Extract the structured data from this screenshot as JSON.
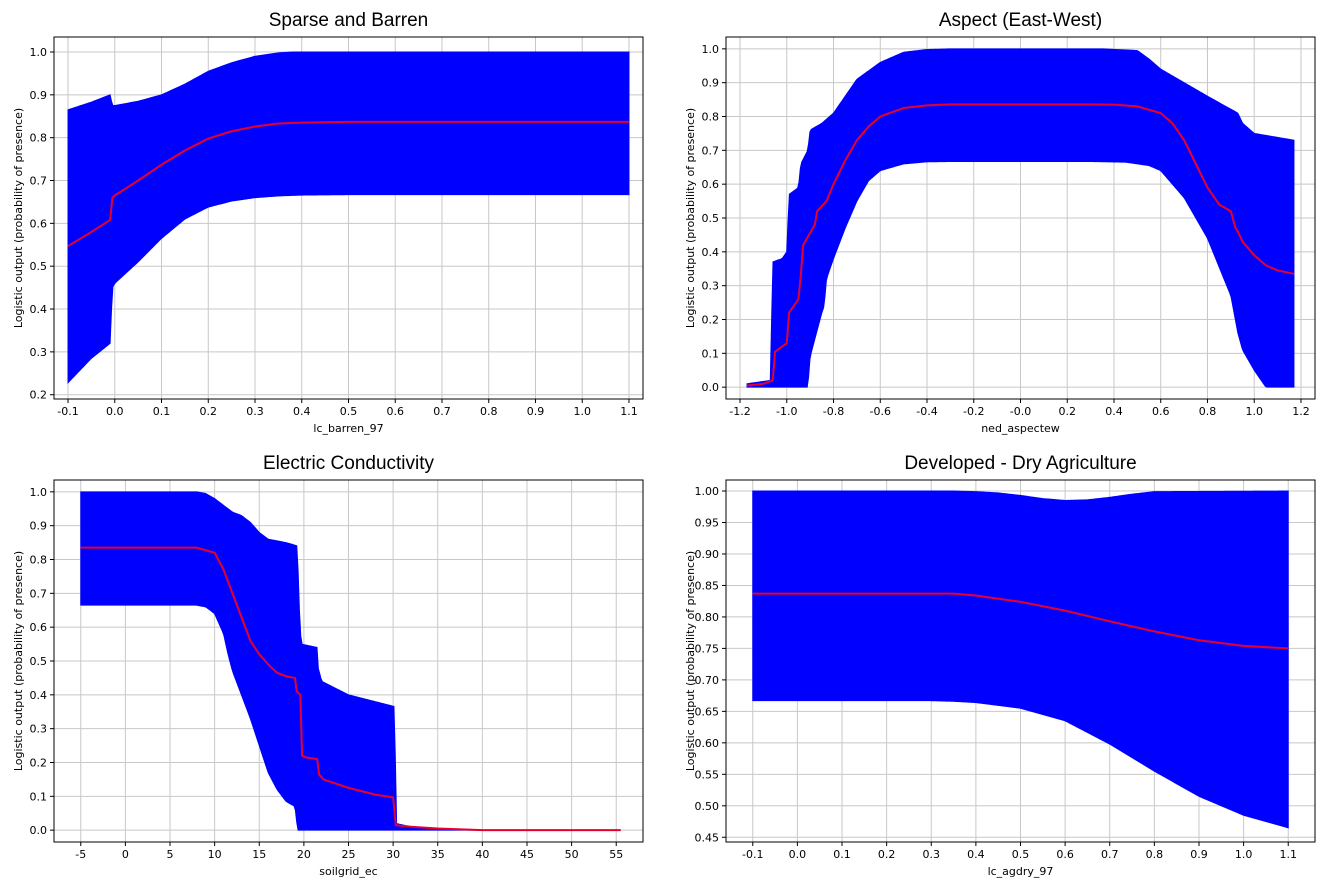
{
  "chart_data": [
    {
      "type": "area",
      "title": "Sparse and Barren",
      "xlabel": "lc_barren_97",
      "ylabel": "Logistic output (probability of presence)",
      "xlim": [
        -0.13,
        1.13
      ],
      "ylim": [
        0.19,
        1.035
      ],
      "xticks": [
        -0.1,
        0.0,
        0.1,
        0.2,
        0.3,
        0.4,
        0.5,
        0.6,
        0.7,
        0.8,
        0.9,
        1.0,
        1.1
      ],
      "yticks": [
        0.2,
        0.3,
        0.4,
        0.5,
        0.6,
        0.7,
        0.8,
        0.9,
        1.0
      ],
      "x_decimals": 1,
      "y_decimals": 1,
      "colors": {
        "band": "#0000ff",
        "line": "#e8002a"
      },
      "series": [
        {
          "role": "mean",
          "x": [
            -0.1,
            -0.05,
            -0.01,
            -0.005,
            0.0,
            0.05,
            0.1,
            0.15,
            0.2,
            0.25,
            0.3,
            0.35,
            0.4,
            0.5,
            0.6,
            0.8,
            1.0,
            1.1
          ],
          "values": [
            0.547,
            0.58,
            0.608,
            0.66,
            0.665,
            0.7,
            0.737,
            0.77,
            0.798,
            0.815,
            0.826,
            0.833,
            0.835,
            0.837,
            0.837,
            0.837,
            0.837,
            0.837
          ]
        },
        {
          "role": "upper",
          "x": [
            -0.1,
            -0.05,
            -0.01,
            -0.005,
            0.0,
            0.05,
            0.1,
            0.15,
            0.2,
            0.25,
            0.3,
            0.35,
            0.38,
            0.5,
            1.1
          ],
          "values": [
            0.865,
            0.883,
            0.9,
            0.875,
            0.875,
            0.885,
            0.9,
            0.925,
            0.955,
            0.975,
            0.99,
            0.998,
            1.0,
            1.0,
            1.0
          ]
        },
        {
          "role": "lower",
          "x": [
            -0.1,
            -0.05,
            -0.01,
            -0.005,
            0.0,
            0.05,
            0.1,
            0.15,
            0.2,
            0.25,
            0.3,
            0.35,
            0.4,
            0.5,
            1.1
          ],
          "values": [
            0.228,
            0.285,
            0.32,
            0.45,
            0.46,
            0.51,
            0.565,
            0.61,
            0.638,
            0.652,
            0.66,
            0.664,
            0.666,
            0.667,
            0.667
          ]
        }
      ]
    },
    {
      "type": "area",
      "title": "Aspect (East-West)",
      "xlabel": "ned_aspectew",
      "ylabel": "Logistic output (probability of presence)",
      "xlim": [
        -1.26,
        1.26
      ],
      "ylim": [
        -0.035,
        1.035
      ],
      "xticks": [
        -1.2,
        -1.0,
        -0.8,
        -0.6,
        -0.4,
        -0.2,
        -0.0,
        0.2,
        0.4,
        0.6,
        0.8,
        1.0,
        1.2
      ],
      "yticks": [
        0.0,
        0.1,
        0.2,
        0.3,
        0.4,
        0.5,
        0.6,
        0.7,
        0.8,
        0.9,
        1.0
      ],
      "x_decimals": 1,
      "y_decimals": 1,
      "colors": {
        "band": "#0000ff",
        "line": "#e8002a"
      },
      "series": [
        {
          "role": "mean",
          "x": [
            -1.17,
            -1.1,
            -1.06,
            -1.05,
            -1.0,
            -0.99,
            -0.95,
            -0.94,
            -0.93,
            -0.88,
            -0.87,
            -0.83,
            -0.8,
            -0.75,
            -0.7,
            -0.65,
            -0.6,
            -0.5,
            -0.4,
            -0.3,
            0.3,
            0.4,
            0.5,
            0.6,
            0.65,
            0.7,
            0.75,
            0.8,
            0.85,
            0.9,
            0.92,
            0.93,
            0.95,
            1.0,
            1.05,
            1.1,
            1.17
          ],
          "values": [
            0.005,
            0.01,
            0.02,
            0.105,
            0.13,
            0.22,
            0.26,
            0.33,
            0.42,
            0.48,
            0.52,
            0.55,
            0.6,
            0.67,
            0.73,
            0.77,
            0.8,
            0.825,
            0.833,
            0.836,
            0.836,
            0.835,
            0.83,
            0.81,
            0.78,
            0.73,
            0.66,
            0.59,
            0.54,
            0.52,
            0.47,
            0.46,
            0.43,
            0.39,
            0.36,
            0.345,
            0.335
          ]
        },
        {
          "role": "upper",
          "x": [
            -1.17,
            -1.07,
            -1.06,
            -1.02,
            -1.0,
            -0.99,
            -0.95,
            -0.94,
            -0.91,
            -0.9,
            -0.85,
            -0.8,
            -0.75,
            -0.7,
            -0.6,
            -0.5,
            -0.4,
            -0.3,
            0.35,
            0.5,
            0.55,
            0.6,
            0.7,
            0.8,
            0.93,
            0.95,
            1.0,
            1.17
          ],
          "values": [
            0.01,
            0.02,
            0.37,
            0.38,
            0.4,
            0.57,
            0.59,
            0.66,
            0.7,
            0.76,
            0.78,
            0.81,
            0.86,
            0.91,
            0.96,
            0.99,
            0.998,
            1.0,
            1.0,
            0.995,
            0.97,
            0.94,
            0.9,
            0.86,
            0.81,
            0.78,
            0.75,
            0.73
          ]
        },
        {
          "role": "lower",
          "x": [
            -1.17,
            -1.1,
            -1.05,
            -1.0,
            -0.95,
            -0.91,
            -0.9,
            -0.85,
            -0.84,
            -0.83,
            -0.8,
            -0.75,
            -0.7,
            -0.65,
            -0.6,
            -0.5,
            -0.4,
            -0.3,
            0.3,
            0.45,
            0.55,
            0.6,
            0.7,
            0.8,
            0.9,
            0.93,
            0.95,
            1.0,
            1.05,
            1.1,
            1.17
          ],
          "values": [
            0.0,
            0.0,
            0.0,
            0.0,
            0.0,
            0.0,
            0.09,
            0.22,
            0.24,
            0.32,
            0.38,
            0.47,
            0.55,
            0.61,
            0.64,
            0.66,
            0.666,
            0.667,
            0.667,
            0.665,
            0.655,
            0.64,
            0.56,
            0.44,
            0.27,
            0.16,
            0.11,
            0.05,
            0.0,
            0.0,
            0.0
          ]
        }
      ]
    },
    {
      "type": "area",
      "title": "Electric Conductivity",
      "xlabel": "soilgrid_ec",
      "ylabel": "Logistic output (probability of presence)",
      "xlim": [
        -8.0,
        58.0
      ],
      "ylim": [
        -0.035,
        1.035
      ],
      "xticks": [
        -5,
        0,
        5,
        10,
        15,
        20,
        25,
        30,
        35,
        40,
        45,
        50,
        55
      ],
      "yticks": [
        0.0,
        0.1,
        0.2,
        0.3,
        0.4,
        0.5,
        0.6,
        0.7,
        0.8,
        0.9,
        1.0
      ],
      "x_decimals": 0,
      "y_decimals": 1,
      "colors": {
        "band": "#0000ff",
        "line": "#e8002a"
      },
      "series": [
        {
          "role": "mean",
          "x": [
            -5,
            8,
            10,
            11,
            12,
            13,
            14,
            15,
            16,
            17,
            18,
            19,
            19.2,
            19.6,
            19.8,
            20.2,
            21.5,
            21.7,
            22.2,
            25,
            28,
            30,
            30.3,
            32,
            35,
            40,
            45,
            55.5
          ],
          "values": [
            0.835,
            0.835,
            0.82,
            0.77,
            0.7,
            0.63,
            0.56,
            0.52,
            0.49,
            0.465,
            0.455,
            0.45,
            0.41,
            0.4,
            0.22,
            0.215,
            0.21,
            0.165,
            0.15,
            0.125,
            0.105,
            0.097,
            0.015,
            0.01,
            0.005,
            0.0,
            0.0,
            0.0
          ]
        },
        {
          "role": "upper",
          "x": [
            -5,
            8,
            9,
            10,
            11,
            12,
            13,
            14,
            15,
            16,
            17,
            18,
            19.3,
            19.4,
            19.7,
            21.5,
            21.6,
            22,
            25,
            30.2,
            30.3,
            32,
            35,
            40,
            55.5
          ],
          "values": [
            1.0,
            1.0,
            0.995,
            0.98,
            0.96,
            0.94,
            0.93,
            0.91,
            0.88,
            0.86,
            0.855,
            0.85,
            0.84,
            0.7,
            0.55,
            0.54,
            0.48,
            0.44,
            0.4,
            0.365,
            0.02,
            0.01,
            0.005,
            0.0,
            0.0
          ]
        },
        {
          "role": "lower",
          "x": [
            -5,
            8,
            9,
            10,
            11,
            11.5,
            12,
            13,
            14,
            15,
            16,
            17,
            18,
            19,
            19.3,
            55.5
          ],
          "values": [
            0.665,
            0.665,
            0.66,
            0.64,
            0.58,
            0.52,
            0.47,
            0.4,
            0.33,
            0.25,
            0.17,
            0.12,
            0.085,
            0.07,
            0.0,
            0.0
          ]
        }
      ]
    },
    {
      "type": "area",
      "title": "Developed - Dry Agriculture",
      "xlabel": "lc_agdry_97",
      "ylabel": "Logistic output (probability of presence)",
      "xlim": [
        -0.16,
        1.16
      ],
      "ylim": [
        0.4425,
        1.0175
      ],
      "xticks": [
        -0.1,
        0.0,
        0.1,
        0.2,
        0.3,
        0.4,
        0.5,
        0.6,
        0.7,
        0.8,
        0.9,
        1.0,
        1.1
      ],
      "yticks": [
        0.45,
        0.5,
        0.55,
        0.6,
        0.65,
        0.7,
        0.75,
        0.8,
        0.85,
        0.9,
        0.95,
        1.0
      ],
      "x_decimals": 1,
      "y_decimals": 2,
      "colors": {
        "band": "#0000ff",
        "line": "#e8002a"
      },
      "series": [
        {
          "role": "mean",
          "x": [
            -0.1,
            0.0,
            0.1,
            0.2,
            0.3,
            0.35,
            0.4,
            0.5,
            0.6,
            0.7,
            0.8,
            0.9,
            1.0,
            1.1
          ],
          "values": [
            0.837,
            0.837,
            0.837,
            0.837,
            0.837,
            0.837,
            0.834,
            0.824,
            0.81,
            0.793,
            0.777,
            0.763,
            0.754,
            0.75
          ]
        },
        {
          "role": "upper",
          "x": [
            -0.1,
            0.3,
            0.35,
            0.4,
            0.45,
            0.5,
            0.55,
            0.6,
            0.65,
            0.7,
            0.75,
            0.8,
            1.1
          ],
          "values": [
            1.0,
            1.0,
            1.0,
            0.999,
            0.997,
            0.993,
            0.988,
            0.985,
            0.986,
            0.99,
            0.995,
            0.999,
            1.0
          ]
        },
        {
          "role": "lower",
          "x": [
            -0.1,
            0.3,
            0.35,
            0.4,
            0.5,
            0.6,
            0.7,
            0.8,
            0.9,
            1.0,
            1.1
          ],
          "values": [
            0.667,
            0.667,
            0.666,
            0.664,
            0.655,
            0.635,
            0.598,
            0.555,
            0.515,
            0.485,
            0.465
          ]
        }
      ]
    }
  ]
}
